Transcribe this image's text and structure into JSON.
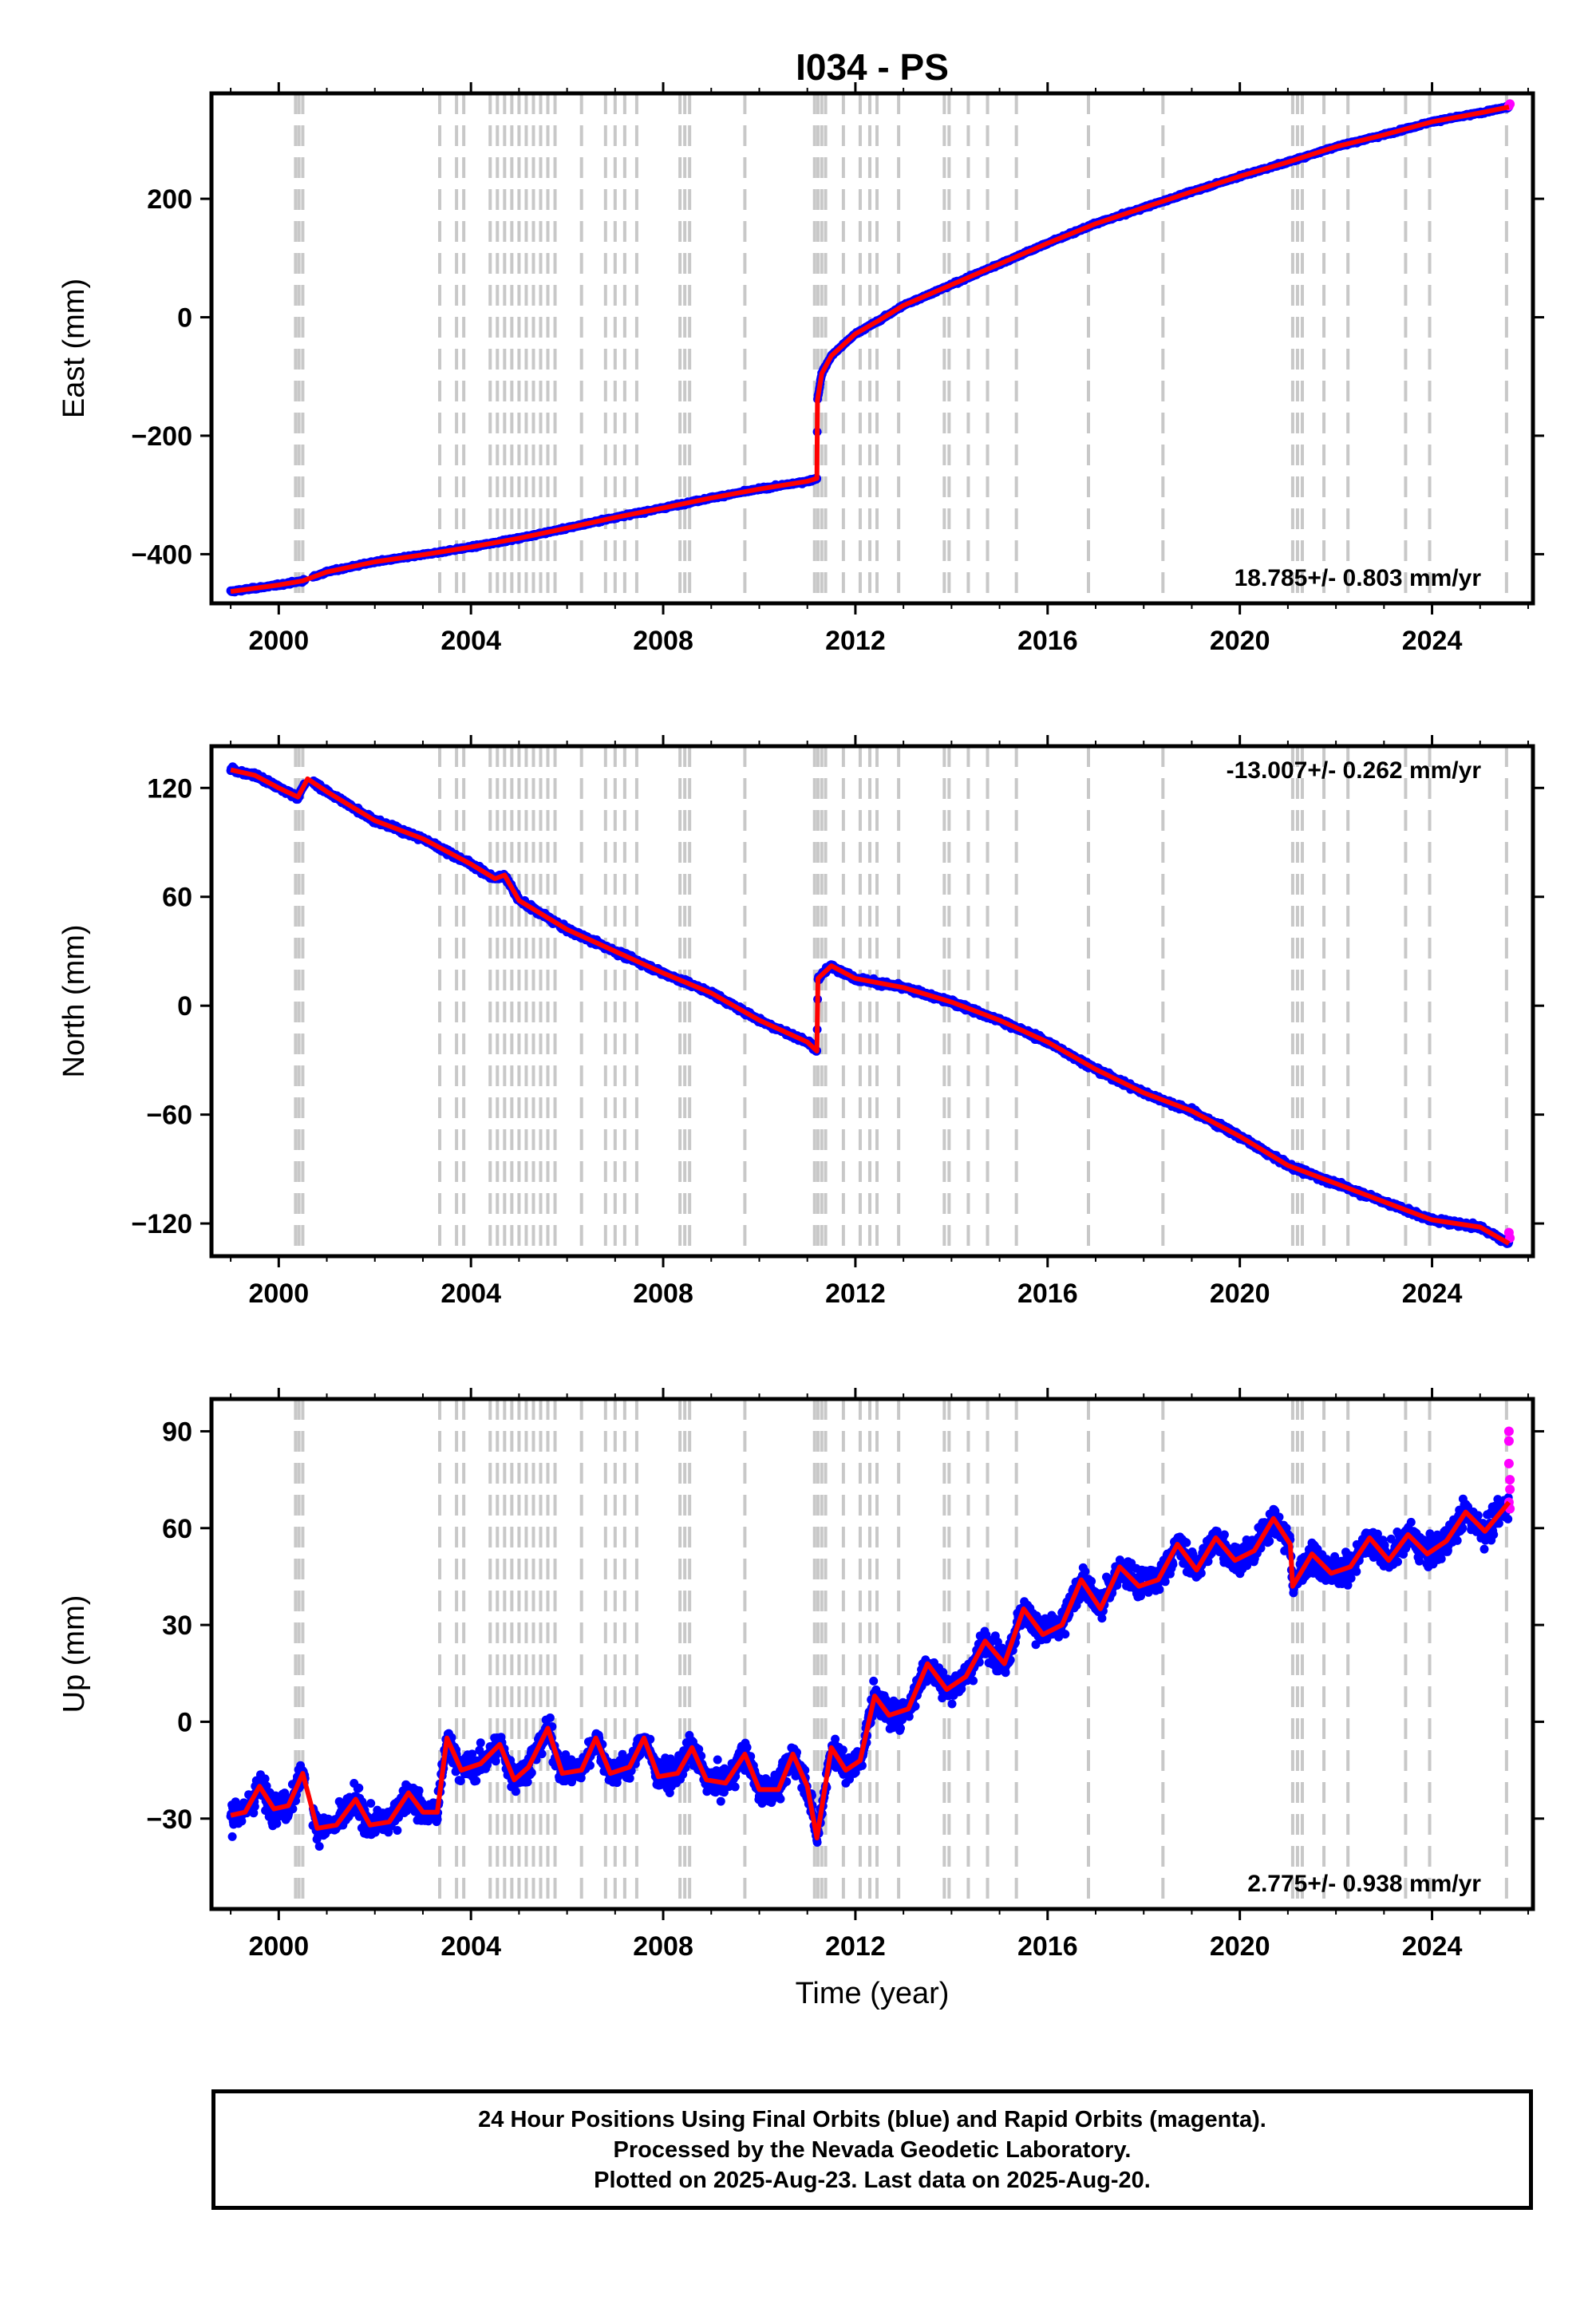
{
  "title": "I034 - PS",
  "colors": {
    "final_orbits": "#0000ff",
    "rapid_orbits": "#ff00ff",
    "model": "#ff0000",
    "event_lines": "#c8c8c8",
    "frame": "#000000"
  },
  "x_axis": {
    "label": "Time (year)",
    "range": [
      1998.6,
      2026.1
    ],
    "ticks": [
      2000,
      2004,
      2008,
      2012,
      2016,
      2020,
      2024
    ],
    "tick_labels": [
      "2000",
      "2004",
      "2008",
      "2012",
      "2016",
      "2020",
      "2024"
    ]
  },
  "event_lines_years": [
    2000.35,
    2000.42,
    2000.5,
    2003.35,
    2003.7,
    2003.85,
    2004.4,
    2004.55,
    2004.7,
    2004.85,
    2005.0,
    2005.15,
    2005.3,
    2005.45,
    2005.6,
    2005.75,
    2006.3,
    2006.8,
    2007.0,
    2007.2,
    2007.45,
    2008.35,
    2008.45,
    2008.55,
    2009.7,
    2011.15,
    2011.22,
    2011.3,
    2011.38,
    2011.75,
    2012.1,
    2012.3,
    2012.45,
    2012.9,
    2013.85,
    2013.95,
    2014.35,
    2014.75,
    2015.35,
    2016.85,
    2018.4,
    2021.1,
    2021.2,
    2021.3,
    2021.75,
    2022.25,
    2023.45,
    2023.95,
    2025.55
  ],
  "chart_data": [
    {
      "type": "scatter",
      "panel": "east",
      "ylabel": "East (mm)",
      "ylim": [
        -483,
        378
      ],
      "yticks": [
        -400,
        -200,
        0,
        200
      ],
      "ytick_labels": [
        "−400",
        "−200",
        "0",
        "200"
      ],
      "xlabel": "",
      "rate_label": "18.785+/- 0.803 mm/yr",
      "rate_position": "bottom-right",
      "model_points": [
        [
          1999.0,
          -463
        ],
        [
          2000.0,
          -452
        ],
        [
          2000.5,
          -445
        ],
        [
          2001.0,
          -430
        ],
        [
          2002.0,
          -413
        ],
        [
          2003.0,
          -401
        ],
        [
          2004.0,
          -388
        ],
        [
          2005.0,
          -373
        ],
        [
          2006.0,
          -356
        ],
        [
          2007.0,
          -338
        ],
        [
          2008.0,
          -322
        ],
        [
          2009.0,
          -305
        ],
        [
          2010.0,
          -290
        ],
        [
          2011.0,
          -277
        ],
        [
          2011.2,
          -272
        ],
        [
          2011.21,
          -140
        ],
        [
          2011.3,
          -95
        ],
        [
          2011.5,
          -65
        ],
        [
          2012.0,
          -28
        ],
        [
          2012.5,
          -5
        ],
        [
          2013.0,
          20
        ],
        [
          2014.0,
          55
        ],
        [
          2015.0,
          90
        ],
        [
          2016.0,
          125
        ],
        [
          2017.0,
          158
        ],
        [
          2018.0,
          185
        ],
        [
          2019.0,
          212
        ],
        [
          2020.0,
          238
        ],
        [
          2021.0,
          262
        ],
        [
          2022.0,
          288
        ],
        [
          2023.0,
          308
        ],
        [
          2024.0,
          330
        ],
        [
          2025.0,
          345
        ],
        [
          2025.6,
          355
        ]
      ],
      "series": [
        {
          "name": "Final Orbits",
          "color": "#0000ff",
          "scatter": 4,
          "y_offset": 0
        },
        {
          "name": "Rapid Orbits",
          "color": "#ff00ff",
          "points": [
            [
              2025.6,
              357
            ],
            [
              2025.62,
              360
            ]
          ]
        }
      ]
    },
    {
      "type": "scatter",
      "panel": "north",
      "ylabel": "North (mm)",
      "ylim": [
        -138,
        143
      ],
      "yticks": [
        -120,
        -60,
        0,
        60,
        120
      ],
      "ytick_labels": [
        "−120",
        "−60",
        "0",
        "60",
        "120"
      ],
      "xlabel": "",
      "rate_label": "-13.007+/- 0.262 mm/yr",
      "rate_position": "top-right",
      "model_points": [
        [
          1999.0,
          130
        ],
        [
          1999.5,
          127
        ],
        [
          2000.0,
          120
        ],
        [
          2000.4,
          115
        ],
        [
          2000.6,
          125
        ],
        [
          2001.0,
          118
        ],
        [
          2002.0,
          102
        ],
        [
          2003.0,
          92
        ],
        [
          2003.5,
          85
        ],
        [
          2004.0,
          78
        ],
        [
          2004.5,
          70
        ],
        [
          2004.7,
          72
        ],
        [
          2005.0,
          58
        ],
        [
          2006.0,
          42
        ],
        [
          2007.0,
          30
        ],
        [
          2008.0,
          18
        ],
        [
          2009.0,
          7
        ],
        [
          2010.0,
          -8
        ],
        [
          2011.0,
          -20
        ],
        [
          2011.2,
          -25
        ],
        [
          2011.22,
          15
        ],
        [
          2011.5,
          22
        ],
        [
          2012.0,
          15
        ],
        [
          2013.0,
          10
        ],
        [
          2014.0,
          2
        ],
        [
          2015.0,
          -8
        ],
        [
          2016.0,
          -20
        ],
        [
          2017.0,
          -35
        ],
        [
          2018.0,
          -48
        ],
        [
          2019.0,
          -58
        ],
        [
          2020.0,
          -72
        ],
        [
          2021.0,
          -88
        ],
        [
          2022.0,
          -98
        ],
        [
          2023.0,
          -108
        ],
        [
          2024.0,
          -118
        ],
        [
          2025.0,
          -122
        ],
        [
          2025.6,
          -131
        ]
      ],
      "series": [
        {
          "name": "Final Orbits",
          "color": "#0000ff",
          "scatter": 3,
          "y_offset": 0
        },
        {
          "name": "Rapid Orbits",
          "color": "#ff00ff",
          "points": [
            [
              2025.6,
              -125
            ],
            [
              2025.62,
              -128
            ]
          ]
        }
      ]
    },
    {
      "type": "scatter",
      "panel": "up",
      "ylabel": "Up (mm)",
      "ylim": [
        -58,
        100
      ],
      "yticks": [
        -30,
        0,
        30,
        60,
        90
      ],
      "ytick_labels": [
        "−30",
        "0",
        "30",
        "60",
        "90"
      ],
      "xlabel": "Time (year)",
      "rate_label": "2.775+/- 0.938 mm/yr",
      "rate_position": "bottom-right",
      "model_points": [
        [
          1999.0,
          -29
        ],
        [
          1999.3,
          -28
        ],
        [
          1999.6,
          -20
        ],
        [
          1999.9,
          -27
        ],
        [
          2000.2,
          -26
        ],
        [
          2000.5,
          -16
        ],
        [
          2000.8,
          -33
        ],
        [
          2001.2,
          -32
        ],
        [
          2001.6,
          -24
        ],
        [
          2001.9,
          -32
        ],
        [
          2002.3,
          -31
        ],
        [
          2002.7,
          -22
        ],
        [
          2003.0,
          -28
        ],
        [
          2003.3,
          -28
        ],
        [
          2003.5,
          -5
        ],
        [
          2003.8,
          -15
        ],
        [
          2004.2,
          -13
        ],
        [
          2004.6,
          -7
        ],
        [
          2004.9,
          -18
        ],
        [
          2005.2,
          -14
        ],
        [
          2005.6,
          -2
        ],
        [
          2005.9,
          -16
        ],
        [
          2006.3,
          -15
        ],
        [
          2006.6,
          -5
        ],
        [
          2006.9,
          -16
        ],
        [
          2007.3,
          -14
        ],
        [
          2007.6,
          -5
        ],
        [
          2007.9,
          -17
        ],
        [
          2008.3,
          -16
        ],
        [
          2008.6,
          -8
        ],
        [
          2008.9,
          -18
        ],
        [
          2009.3,
          -19
        ],
        [
          2009.7,
          -10
        ],
        [
          2010.0,
          -21
        ],
        [
          2010.4,
          -21
        ],
        [
          2010.7,
          -10
        ],
        [
          2011.0,
          -20
        ],
        [
          2011.2,
          -36
        ],
        [
          2011.5,
          -8
        ],
        [
          2011.8,
          -15
        ],
        [
          2012.1,
          -12
        ],
        [
          2012.4,
          8
        ],
        [
          2012.7,
          2
        ],
        [
          2013.1,
          4
        ],
        [
          2013.5,
          18
        ],
        [
          2013.9,
          10
        ],
        [
          2014.3,
          14
        ],
        [
          2014.7,
          25
        ],
        [
          2015.1,
          18
        ],
        [
          2015.5,
          35
        ],
        [
          2015.9,
          27
        ],
        [
          2016.3,
          30
        ],
        [
          2016.7,
          44
        ],
        [
          2017.1,
          35
        ],
        [
          2017.5,
          48
        ],
        [
          2017.9,
          42
        ],
        [
          2018.3,
          44
        ],
        [
          2018.7,
          55
        ],
        [
          2019.1,
          47
        ],
        [
          2019.5,
          57
        ],
        [
          2019.9,
          50
        ],
        [
          2020.3,
          53
        ],
        [
          2020.7,
          63
        ],
        [
          2021.05,
          55
        ],
        [
          2021.1,
          42
        ],
        [
          2021.5,
          52
        ],
        [
          2021.9,
          46
        ],
        [
          2022.3,
          48
        ],
        [
          2022.7,
          57
        ],
        [
          2023.1,
          50
        ],
        [
          2023.5,
          58
        ],
        [
          2023.9,
          52
        ],
        [
          2024.3,
          56
        ],
        [
          2024.7,
          65
        ],
        [
          2025.1,
          59
        ],
        [
          2025.6,
          68
        ]
      ],
      "series": [
        {
          "name": "Final Orbits",
          "color": "#0000ff",
          "scatter": 9,
          "y_offset": 0
        },
        {
          "name": "Rapid Orbits",
          "color": "#ff00ff",
          "points": [
            [
              2025.6,
              90
            ],
            [
              2025.6,
              87
            ],
            [
              2025.6,
              80
            ],
            [
              2025.62,
              75
            ],
            [
              2025.62,
              72
            ],
            [
              2025.6,
              68
            ],
            [
              2025.62,
              66
            ]
          ]
        }
      ]
    }
  ],
  "footer": {
    "line1": "24 Hour Positions Using Final Orbits (blue) and Rapid Orbits (magenta).",
    "line2": "Processed by the Nevada Geodetic Laboratory.",
    "line3": "Plotted on 2025-Aug-23. Last data on 2025-Aug-20."
  }
}
